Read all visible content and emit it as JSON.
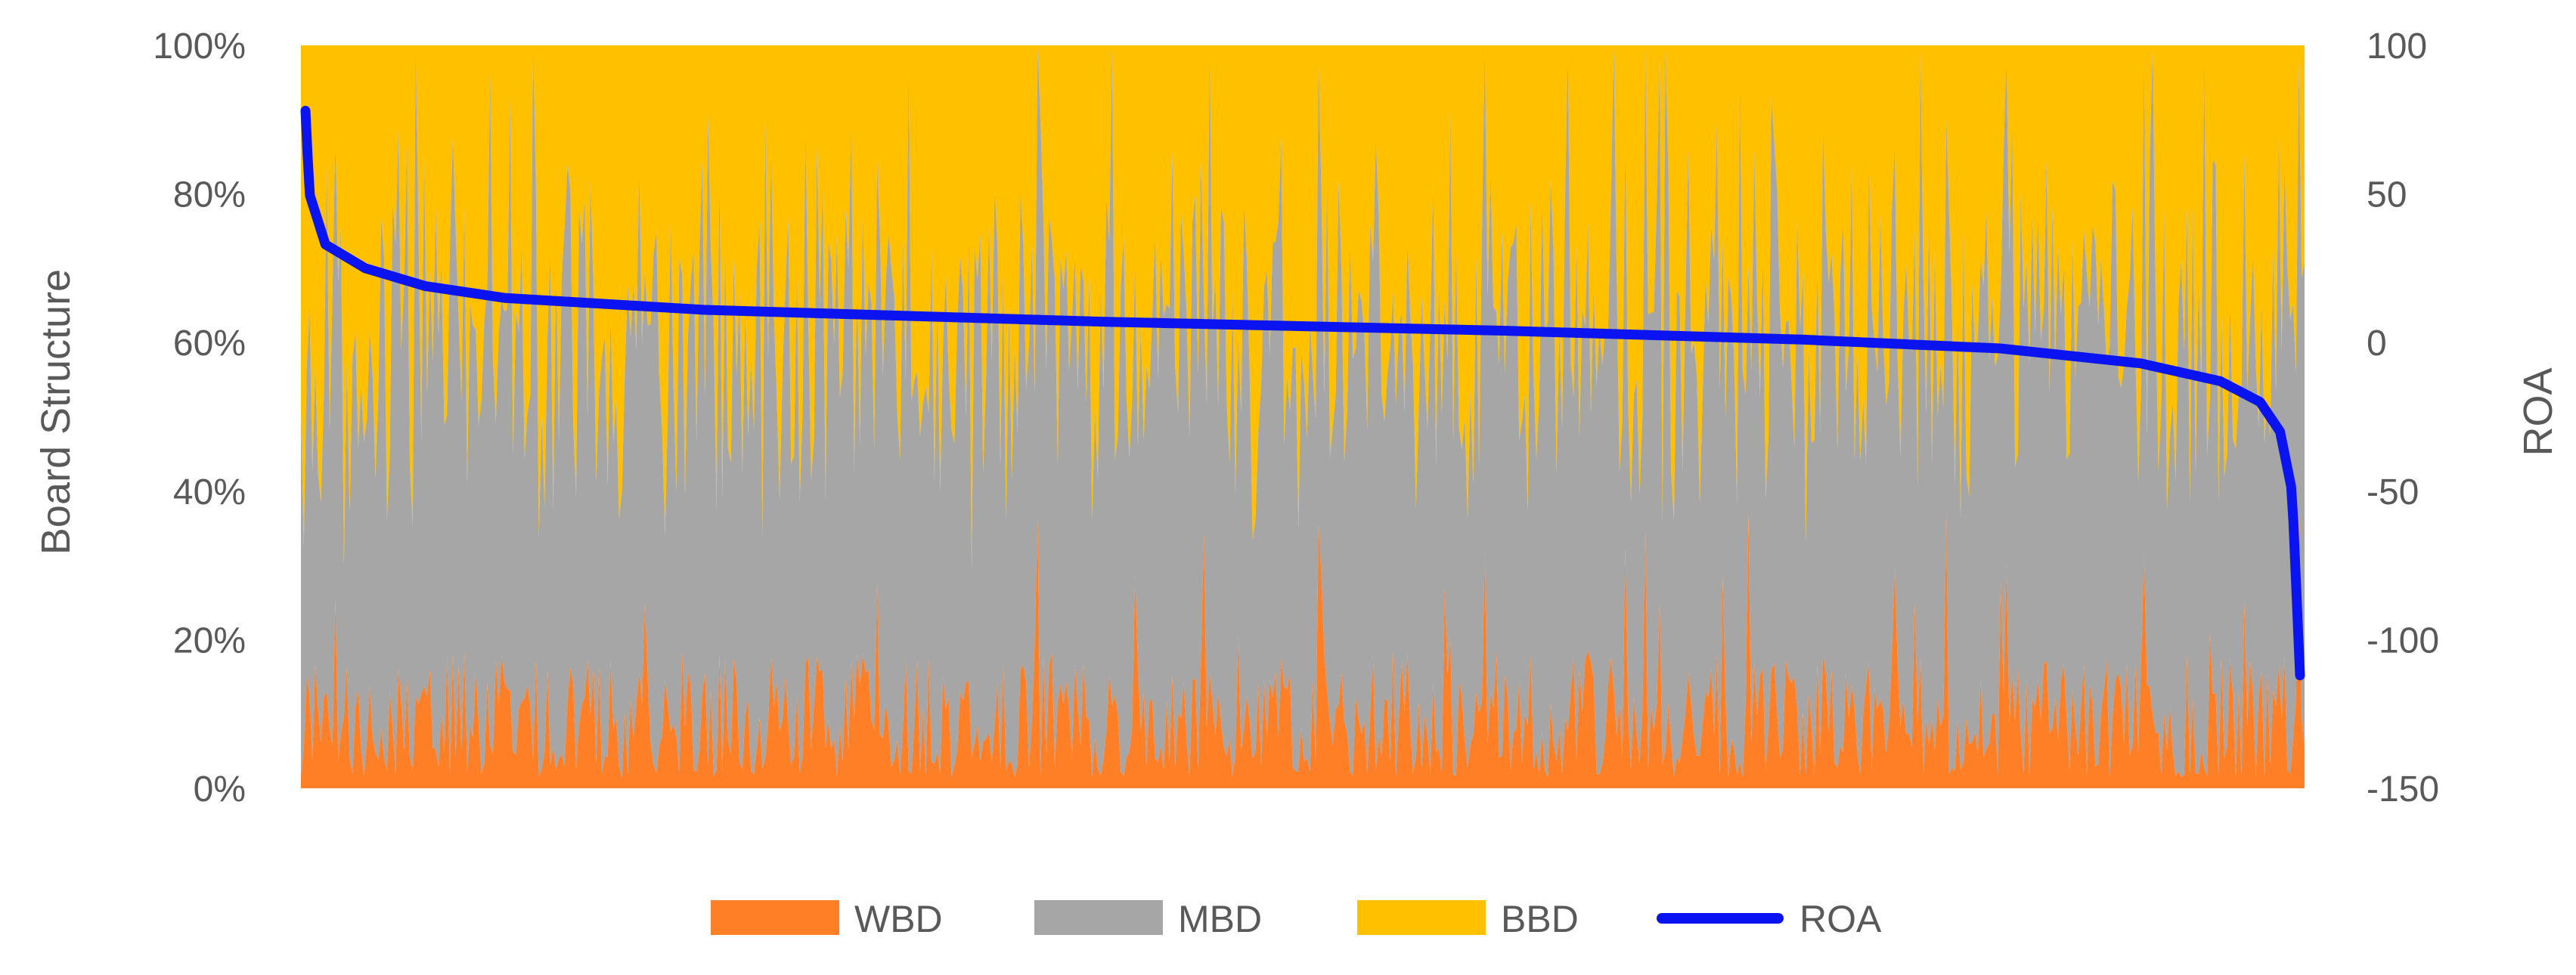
{
  "chart_data": {
    "type": "area",
    "subtype": "100% stacked area with secondary-axis line",
    "title": "",
    "xlabel": "",
    "ylabel": "Board  Structure",
    "y2label": "ROA",
    "ylim": [
      0,
      100
    ],
    "y2lim": [
      -150,
      100
    ],
    "yticks": [
      "0%",
      "20%",
      "40%",
      "60%",
      "80%",
      "100%"
    ],
    "y2ticks": [
      "-150",
      "-100",
      "-50",
      "0",
      "50",
      "100"
    ],
    "grid": false,
    "legend_position": "bottom",
    "n_observations": 700,
    "stack_series": [
      {
        "name": "WBD",
        "color": "#FF7F27",
        "approx_share_percent": {
          "typical": 10,
          "min": 0,
          "max": 37
        }
      },
      {
        "name": "MBD",
        "color": "#A6A6A6",
        "approx_share_percent": {
          "typical": 50,
          "min": 15,
          "max": 90
        }
      },
      {
        "name": "BBD",
        "color": "#FFC000",
        "approx_share_percent": {
          "typical": 35,
          "min": 0,
          "max": 70
        }
      }
    ],
    "line_series": {
      "name": "ROA",
      "color": "#0A14F0",
      "axis": "secondary",
      "sorted": "descending",
      "key_points": [
        {
          "rank_pct": 0,
          "value": 78
        },
        {
          "rank_pct": 0.2,
          "value": 50
        },
        {
          "rank_pct": 1,
          "value": 33
        },
        {
          "rank_pct": 3,
          "value": 25
        },
        {
          "rank_pct": 6,
          "value": 19
        },
        {
          "rank_pct": 10,
          "value": 15
        },
        {
          "rank_pct": 20,
          "value": 11
        },
        {
          "rank_pct": 40,
          "value": 7
        },
        {
          "rank_pct": 60,
          "value": 4
        },
        {
          "rank_pct": 75,
          "value": 1
        },
        {
          "rank_pct": 85,
          "value": -2
        },
        {
          "rank_pct": 92,
          "value": -7
        },
        {
          "rank_pct": 96,
          "value": -13
        },
        {
          "rank_pct": 98,
          "value": -20
        },
        {
          "rank_pct": 99,
          "value": -30
        },
        {
          "rank_pct": 99.6,
          "value": -50
        },
        {
          "rank_pct": 100,
          "value": -112
        }
      ]
    }
  }
}
